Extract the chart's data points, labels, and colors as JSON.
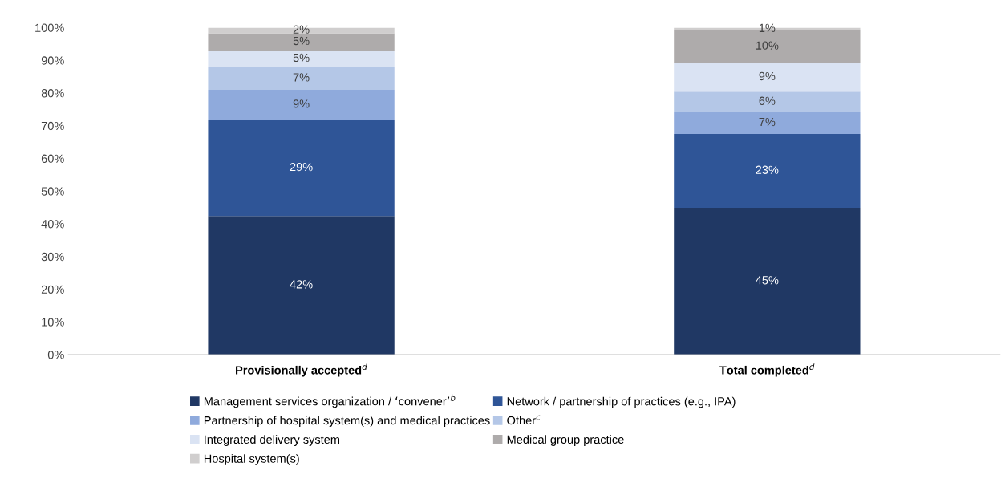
{
  "chart_data": {
    "type": "bar",
    "stacked": true,
    "categories": [
      "Provisionally accepted$^{d}$",
      "Total completed$^{d}$"
    ],
    "series": [
      {
        "name": "Management services organization / ‘convener’$^{b}$",
        "color": "#203864",
        "values": [
          42.4,
          44.9
        ],
        "value_labels": [
          "42%",
          "45%"
        ]
      },
      {
        "name": "Network / partnership of practices (e.g., IPA)",
        "color": "#2f5597",
        "values": [
          29.4,
          22.6
        ],
        "value_labels": [
          "29%",
          "23%"
        ]
      },
      {
        "name": "Partnership of hospital system(s) and medical practices",
        "color": "#8faadc",
        "values": [
          9.2,
          6.7
        ],
        "value_labels": [
          "9%",
          "7%"
        ]
      },
      {
        "name": "Other$^{c}$",
        "color": "#b4c7e7",
        "values": [
          7.0,
          6.2
        ],
        "value_labels": [
          "7%",
          "6%"
        ]
      },
      {
        "name": "Integrated delivery system",
        "color": "#dae3f3",
        "values": [
          5.0,
          8.9
        ],
        "value_labels": [
          "5%",
          "9%"
        ]
      },
      {
        "name": "Medical group practice",
        "color": "#aeabab",
        "values": [
          5.3,
          9.9
        ],
        "value_labels": [
          "5%",
          "10%"
        ]
      },
      {
        "name": "Hospital system(s)",
        "color": "#d0cece",
        "values": [
          1.7,
          0.8
        ],
        "value_labels": [
          "2%",
          "1%"
        ]
      }
    ],
    "ylim": [
      0,
      100
    ],
    "yticks": [
      {
        "value": 0,
        "label": "0%"
      },
      {
        "value": 10,
        "label": "10%"
      },
      {
        "value": 20,
        "label": "20%"
      },
      {
        "value": 30,
        "label": "30%"
      },
      {
        "value": 40,
        "label": "40%"
      },
      {
        "value": 50,
        "label": "50%"
      },
      {
        "value": 60,
        "label": "60%"
      },
      {
        "value": 70,
        "label": "70%"
      },
      {
        "value": 80,
        "label": "80%"
      },
      {
        "value": 90,
        "label": "90%"
      },
      {
        "value": 100,
        "label": "100%"
      }
    ],
    "grid": false,
    "legend": "bottom"
  }
}
